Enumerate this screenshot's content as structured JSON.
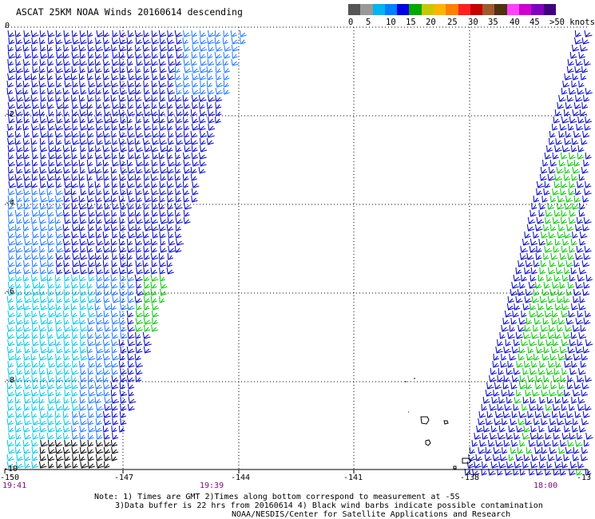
{
  "title": "ASCAT 25KM NOAA Winds 20160614 descending",
  "legend": {
    "colors": [
      "#555555",
      "#999999",
      "#00b4f0",
      "#0080ff",
      "#0000e6",
      "#00aa00",
      "#c8c800",
      "#ffb400",
      "#ff8000",
      "#ff2020",
      "#c80000",
      "#a05a2c",
      "#503010",
      "#ff40ff",
      "#d000d0",
      "#8000c0",
      "#400080"
    ],
    "labels": [
      "0",
      "5",
      "10",
      "15",
      "20",
      "25",
      "30",
      "35",
      "40",
      "45",
      ">50 knots"
    ]
  },
  "axes": {
    "y_labels": [
      "0",
      "-2",
      "-4",
      "-6",
      "-8",
      "-10"
    ],
    "x_labels": [
      "-150",
      "-147",
      "-144",
      "-141",
      "-138",
      "-13"
    ],
    "time_labels": [
      "19:41",
      "19:39",
      "18:00"
    ]
  },
  "notes": {
    "line1": "Note: 1) Times are GMT 2)Times along bottom correspond to measurement at -5S",
    "line2": "3)Data buffer is 22 hrs from 20160614 4) Black wind barbs indicate possible contamination",
    "line3": "NOAA/NESDIS/Center for Satellite Applications and Research"
  },
  "colors": {
    "barb_cyan": "#00c8e6",
    "barb_mid": "#1e78ff",
    "barb_blue": "#0000c8",
    "barb_green": "#00c800",
    "barb_black": "#000000",
    "grid": "#000000",
    "time": "#7a0a7a"
  }
}
